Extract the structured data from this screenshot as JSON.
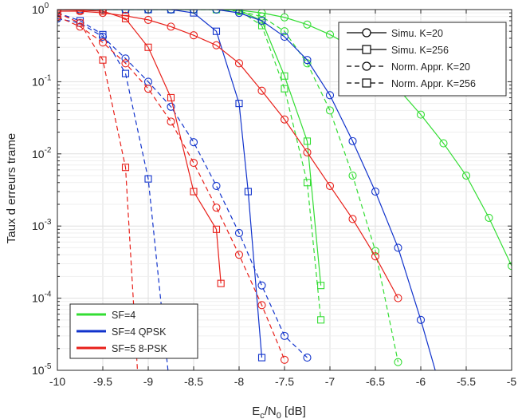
{
  "chart_data": {
    "type": "line",
    "xlabel": "E",
    "xlabel_sub": "c",
    "xlabel_mid": "/N",
    "xlabel_sub2": "0",
    "xlabel_unit": " [dB]",
    "ylabel": "Taux d erreurs trame",
    "xlim": [
      -10,
      -5
    ],
    "ylim": [
      1e-05,
      1
    ],
    "yscale": "log",
    "grid": true,
    "x_ticks": [
      -10,
      -9.5,
      -9,
      -8.5,
      -8,
      -7.5,
      -7,
      -6.5,
      -6,
      -5.5,
      -5
    ],
    "x_tick_labels": [
      "-10",
      "-9.5",
      "-9",
      "-8.5",
      "-8",
      "-7.5",
      "-7",
      "-6.5",
      "-6",
      "-5.5",
      "-5"
    ],
    "y_ticks": [
      {
        "value": 1e-05,
        "base": "10",
        "exp": "-5"
      },
      {
        "value": 0.0001,
        "base": "10",
        "exp": "-4"
      },
      {
        "value": 0.001,
        "base": "10",
        "exp": "-3"
      },
      {
        "value": 0.01,
        "base": "10",
        "exp": "-2"
      },
      {
        "value": 0.1,
        "base": "10",
        "exp": "-1"
      },
      {
        "value": 1,
        "base": "10",
        "exp": "0"
      }
    ],
    "style_legend": {
      "placement": "top-right",
      "entries": [
        {
          "label": "Simu. K=20",
          "dash": "solid",
          "marker": "circle"
        },
        {
          "label": "Simu. K=256",
          "dash": "solid",
          "marker": "square"
        },
        {
          "label": "Norm. Appr. K=20",
          "dash": "dashed",
          "marker": "circle"
        },
        {
          "label": "Norm. Appr. K=256",
          "dash": "dashed",
          "marker": "square"
        }
      ]
    },
    "color_legend": {
      "placement": "bottom-left",
      "entries": [
        {
          "label": "SF=4",
          "color": "#33dd33"
        },
        {
          "label": "SF=4 QPSK",
          "color": "#1133cc"
        },
        {
          "label": "SF=5 8-PSK",
          "color": "#e8201a"
        }
      ]
    },
    "series": [
      {
        "group": "SF=4",
        "color": "#33dd33",
        "dash": "solid",
        "marker": "circle",
        "x": [
          -10,
          -9.75,
          -9.5,
          -9.25,
          -9,
          -8.75,
          -8.5,
          -8.25,
          -8,
          -7.75,
          -7.5,
          -7.25,
          -7,
          -6.75,
          -6.5,
          -6.25,
          -6,
          -5.75,
          -5.5,
          -5.25,
          -5
        ],
        "y": [
          1,
          1,
          1,
          1,
          1,
          1,
          1,
          1,
          0.98,
          0.9,
          0.78,
          0.62,
          0.45,
          0.3,
          0.17,
          0.08,
          0.035,
          0.014,
          0.005,
          0.0013,
          0.00028
        ]
      },
      {
        "group": "SF=4",
        "color": "#33dd33",
        "dash": "solid",
        "marker": "square",
        "x": [
          -10,
          -9.75,
          -9.5,
          -9.25,
          -9,
          -8.75,
          -8.5,
          -8.25,
          -8,
          -7.75,
          -7.5,
          -7.25,
          -7.1
        ],
        "y": [
          1,
          1,
          1,
          1,
          1,
          1,
          1,
          1,
          0.98,
          0.7,
          0.12,
          0.015,
          0.00015
        ]
      },
      {
        "group": "SF=4",
        "color": "#33dd33",
        "dash": "dashed",
        "marker": "circle",
        "x": [
          -10,
          -9.75,
          -9.5,
          -9.25,
          -9,
          -8.75,
          -8.5,
          -8.25,
          -8,
          -7.75,
          -7.5,
          -7.25,
          -7,
          -6.75,
          -6.5,
          -6.25
        ],
        "y": [
          1,
          1,
          1,
          1,
          1,
          1,
          1,
          1,
          0.95,
          0.8,
          0.5,
          0.18,
          0.04,
          0.005,
          0.00045,
          1.3e-05
        ]
      },
      {
        "group": "SF=4",
        "color": "#33dd33",
        "dash": "dashed",
        "marker": "square",
        "x": [
          -10,
          -9.75,
          -9.5,
          -9.25,
          -9,
          -8.75,
          -8.5,
          -8.25,
          -8,
          -7.75,
          -7.5,
          -7.25,
          -7.1
        ],
        "y": [
          1,
          1,
          1,
          1,
          1,
          1,
          1,
          1,
          0.97,
          0.6,
          0.08,
          0.004,
          5e-05
        ]
      },
      {
        "group": "SF=4 QPSK",
        "color": "#1133cc",
        "dash": "solid",
        "marker": "circle",
        "x": [
          -10,
          -9.75,
          -9.5,
          -9.25,
          -9,
          -8.75,
          -8.5,
          -8.25,
          -8,
          -7.75,
          -7.5,
          -7.25,
          -7,
          -6.75,
          -6.5,
          -6.25,
          -6,
          -5.75
        ],
        "y": [
          1,
          1,
          1,
          1,
          1,
          1,
          1,
          1,
          0.9,
          0.7,
          0.42,
          0.2,
          0.065,
          0.015,
          0.003,
          0.0005,
          5e-05,
          4e-06
        ]
      },
      {
        "group": "SF=4 QPSK",
        "color": "#1133cc",
        "dash": "solid",
        "marker": "square",
        "x": [
          -10,
          -9.75,
          -9.5,
          -9.25,
          -9,
          -8.75,
          -8.5,
          -8.25,
          -8,
          -7.9,
          -7.75
        ],
        "y": [
          1,
          1,
          1,
          1,
          1,
          1,
          0.9,
          0.5,
          0.05,
          0.003,
          1.5e-05
        ]
      },
      {
        "group": "SF=4 QPSK",
        "color": "#1133cc",
        "dash": "dashed",
        "marker": "circle",
        "x": [
          -10,
          -9.75,
          -9.5,
          -9.25,
          -9,
          -8.75,
          -8.5,
          -8.25,
          -8,
          -7.75,
          -7.5,
          -7.25
        ],
        "y": [
          0.75,
          0.65,
          0.42,
          0.21,
          0.1,
          0.045,
          0.0145,
          0.0036,
          0.0008,
          0.00015,
          3e-05,
          1.5e-05
        ]
      },
      {
        "group": "SF=4 QPSK",
        "color": "#1133cc",
        "dash": "dashed",
        "marker": "square",
        "x": [
          -10,
          -9.75,
          -9.5,
          -9.25,
          -9,
          -8.75
        ],
        "y": [
          0.9,
          0.7,
          0.45,
          0.13,
          0.0045,
          4e-06
        ]
      },
      {
        "group": "SF=5 8-PSK",
        "color": "#e8201a",
        "dash": "solid",
        "marker": "circle",
        "x": [
          -10,
          -9.75,
          -9.5,
          -9.25,
          -9,
          -8.75,
          -8.5,
          -8.25,
          -8,
          -7.75,
          -7.5,
          -7.25,
          -7,
          -6.75,
          -6.5,
          -6.25
        ],
        "y": [
          0.95,
          0.95,
          0.9,
          0.82,
          0.72,
          0.58,
          0.44,
          0.32,
          0.18,
          0.075,
          0.03,
          0.0105,
          0.0036,
          0.00125,
          0.00038,
          0.0001
        ]
      },
      {
        "group": "SF=5 8-PSK",
        "color": "#e8201a",
        "dash": "solid",
        "marker": "square",
        "x": [
          -10,
          -9.75,
          -9.5,
          -9.25,
          -9,
          -8.75,
          -8.5,
          -8.25,
          -8.2
        ],
        "y": [
          1,
          0.98,
          0.95,
          0.75,
          0.3,
          0.06,
          0.003,
          0.0009,
          0.00016
        ]
      },
      {
        "group": "SF=5 8-PSK",
        "color": "#e8201a",
        "dash": "dashed",
        "marker": "circle",
        "x": [
          -10,
          -9.75,
          -9.5,
          -9.25,
          -9,
          -8.75,
          -8.5,
          -8.25,
          -8,
          -7.75,
          -7.5
        ],
        "y": [
          0.8,
          0.58,
          0.35,
          0.18,
          0.08,
          0.028,
          0.0075,
          0.0018,
          0.0004,
          8e-05,
          1.4e-05
        ]
      },
      {
        "group": "SF=5 8-PSK",
        "color": "#e8201a",
        "dash": "dashed",
        "marker": "square",
        "x": [
          -10,
          -9.75,
          -9.5,
          -9.25,
          -9.1
        ],
        "y": [
          0.9,
          0.65,
          0.2,
          0.0065,
          4e-06
        ]
      }
    ]
  }
}
